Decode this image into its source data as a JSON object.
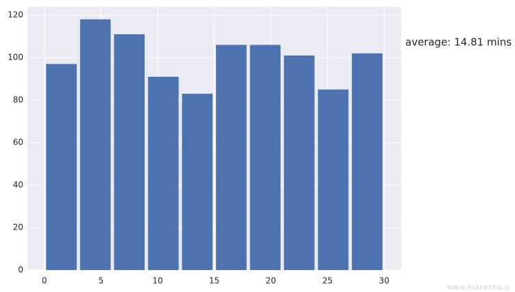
{
  "chart_data": {
    "type": "histogram",
    "bins": [
      0,
      3,
      6,
      9,
      12,
      15,
      18,
      21,
      24,
      27,
      30
    ],
    "values": [
      97,
      118,
      111,
      91,
      83,
      106,
      106,
      101,
      85,
      102
    ],
    "color": "#4c72b0",
    "xlim": [
      -1.5,
      31.5
    ],
    "xticks": [
      0,
      5,
      10,
      15,
      20,
      25,
      30
    ],
    "ylim": [
      0,
      123.9
    ],
    "yticks": [
      0,
      20,
      40,
      60,
      80,
      100,
      120
    ],
    "grid": true,
    "annotation": "average: 14.81 mins",
    "watermark": "www.kiarashs.ir"
  }
}
